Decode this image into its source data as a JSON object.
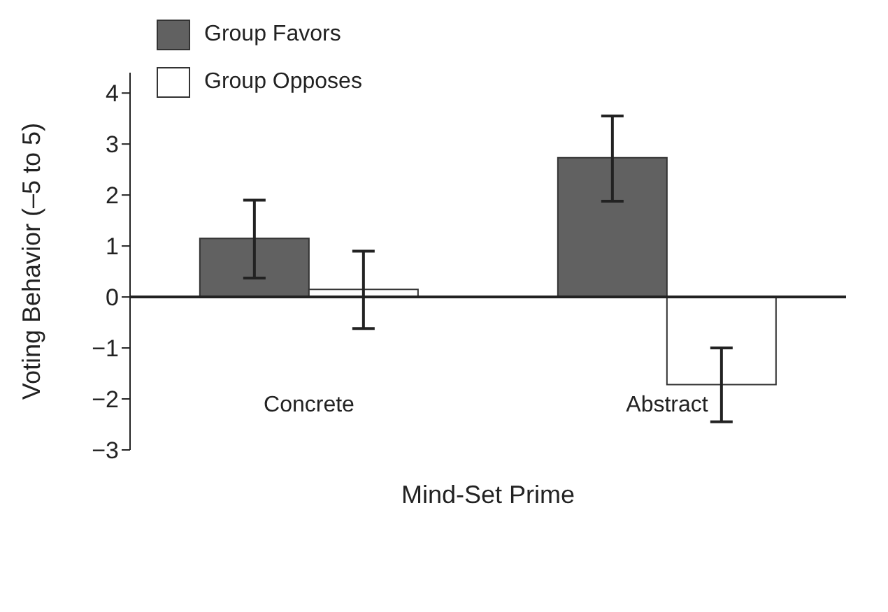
{
  "chart_data": {
    "type": "bar",
    "xlabel": "Mind-Set Prime",
    "ylabel": "Voting Behavior (–5 to 5)",
    "categories": [
      "Concrete",
      "Abstract"
    ],
    "series": [
      {
        "name": "Group Favors",
        "color": "#616161",
        "values": [
          1.15,
          2.73
        ],
        "errors": [
          [
            0.37,
            1.9
          ],
          [
            1.88,
            3.55
          ]
        ]
      },
      {
        "name": "Group Opposes",
        "color": "#ffffff",
        "values": [
          0.15,
          -1.72
        ],
        "errors": [
          [
            -0.62,
            0.9
          ],
          [
            -2.45,
            -1.0
          ]
        ]
      }
    ],
    "ylim": [
      -3,
      4.4
    ],
    "yticks": [
      -3,
      -2,
      -1,
      0,
      1,
      2,
      3,
      4
    ],
    "ref_lines": [
      {
        "axis": "y",
        "value": 0,
        "color": "#222222"
      }
    ],
    "legend": "top left"
  }
}
